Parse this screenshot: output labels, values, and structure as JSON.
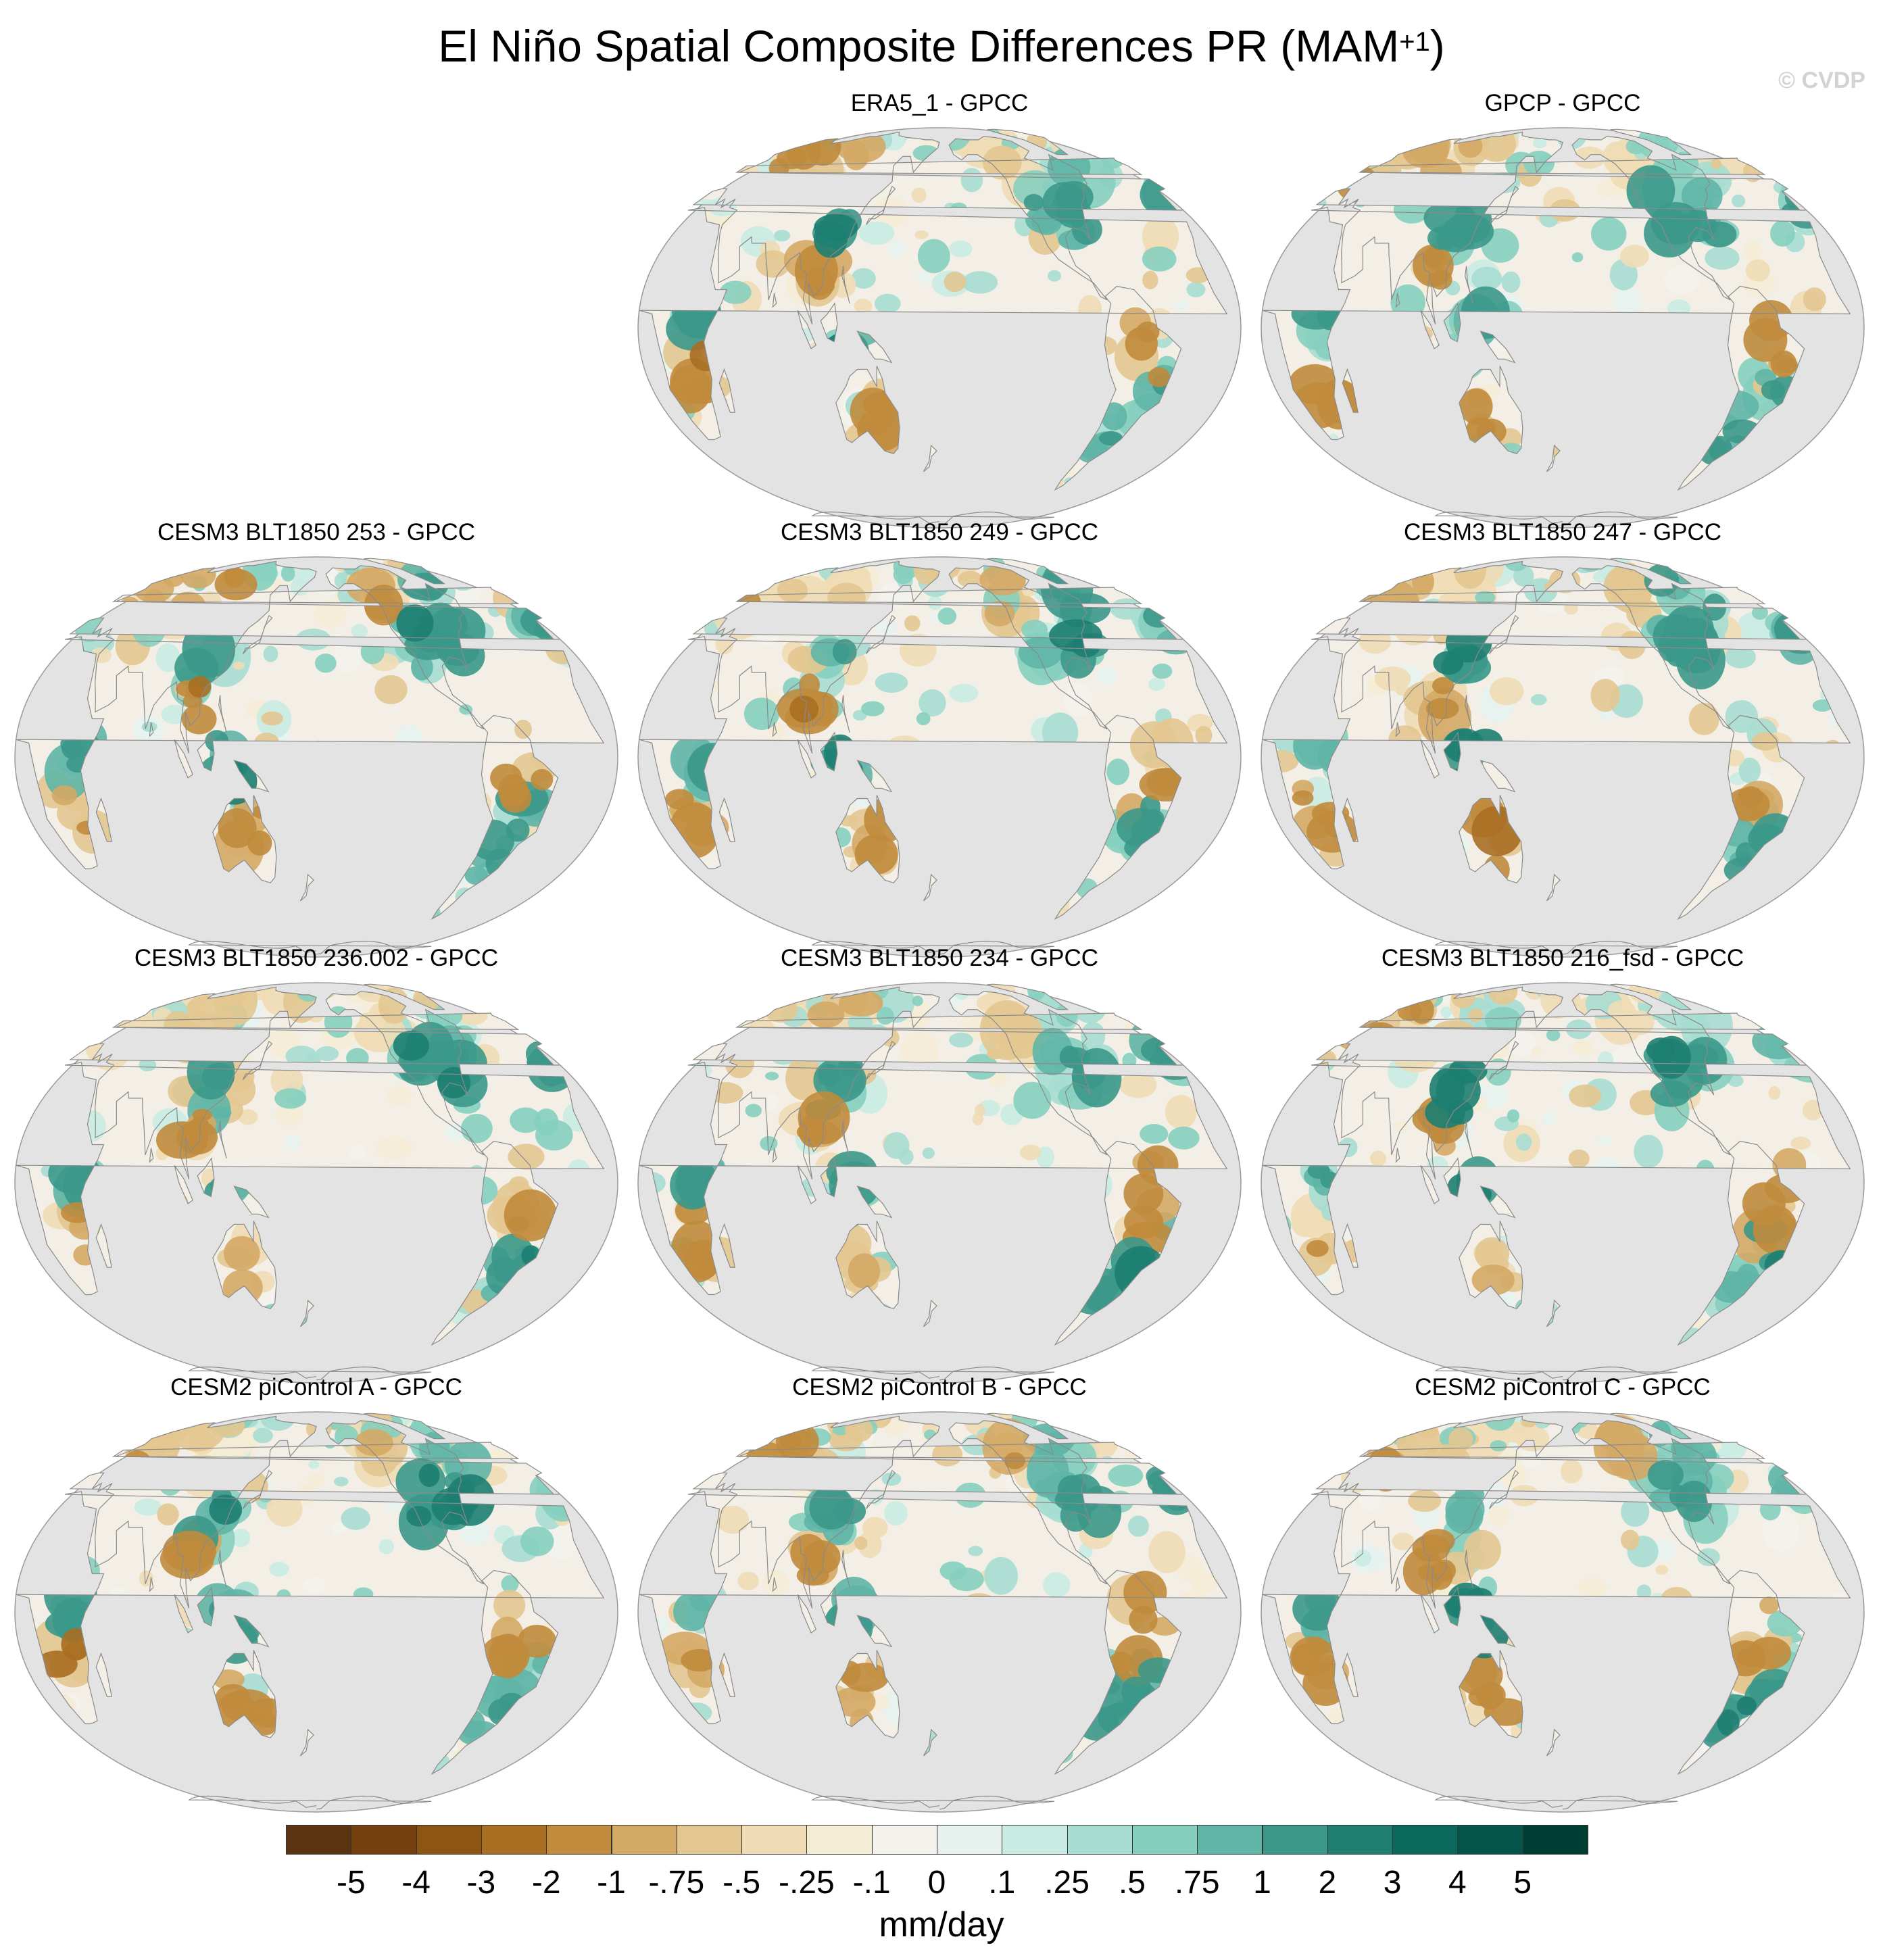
{
  "figure": {
    "title_main": "El Niño Spatial Composite Differences PR (MAM",
    "title_sup": "+1",
    "title_end": ")",
    "copyright": "© CVDP"
  },
  "panels": [
    {
      "title": "ERA5_1 - GPCC",
      "seed": 11
    },
    {
      "title": "GPCP - GPCC",
      "seed": 23
    },
    {
      "title": "CESM3 BLT1850 253 - GPCC",
      "seed": 37
    },
    {
      "title": "CESM3 BLT1850 249 - GPCC",
      "seed": 41
    },
    {
      "title": "CESM3 BLT1850 247 - GPCC",
      "seed": 53
    },
    {
      "title": "CESM3 BLT1850 236.002 - GPCC",
      "seed": 67
    },
    {
      "title": "CESM3 BLT1850 234 - GPCC",
      "seed": 71
    },
    {
      "title": "CESM3 BLT1850 216_fsd - GPCC",
      "seed": 83
    },
    {
      "title": "CESM2 piControl A - GPCC",
      "seed": 97
    },
    {
      "title": "CESM2 piControl B - GPCC",
      "seed": 101
    },
    {
      "title": "CESM2 piControl C - GPCC",
      "seed": 113
    }
  ],
  "colorbar": {
    "units": "mm/day",
    "labels": [
      "-5",
      "-4",
      "-3",
      "-2",
      "-1",
      "-.75",
      "-.5",
      "-.25",
      "-.1",
      "0",
      ".1",
      ".25",
      ".5",
      ".75",
      "1",
      "2",
      "3",
      "4",
      "5"
    ],
    "colors": [
      "#5a3410",
      "#74410e",
      "#8d5512",
      "#a96e22",
      "#c08b3c",
      "#d4a965",
      "#e3c790",
      "#efdcb5",
      "#f5ecd6",
      "#f4f2ed",
      "#e7f2ef",
      "#c9ebe3",
      "#a7ddd2",
      "#86cfbf",
      "#5fb5a6",
      "#3b9889",
      "#1d7e71",
      "#0a685c",
      "#03554a",
      "#003d33"
    ]
  },
  "colors": {
    "ocean": "#e3e3e3",
    "coast": "#8a8a8a",
    "land_base": "#f3efe6"
  }
}
